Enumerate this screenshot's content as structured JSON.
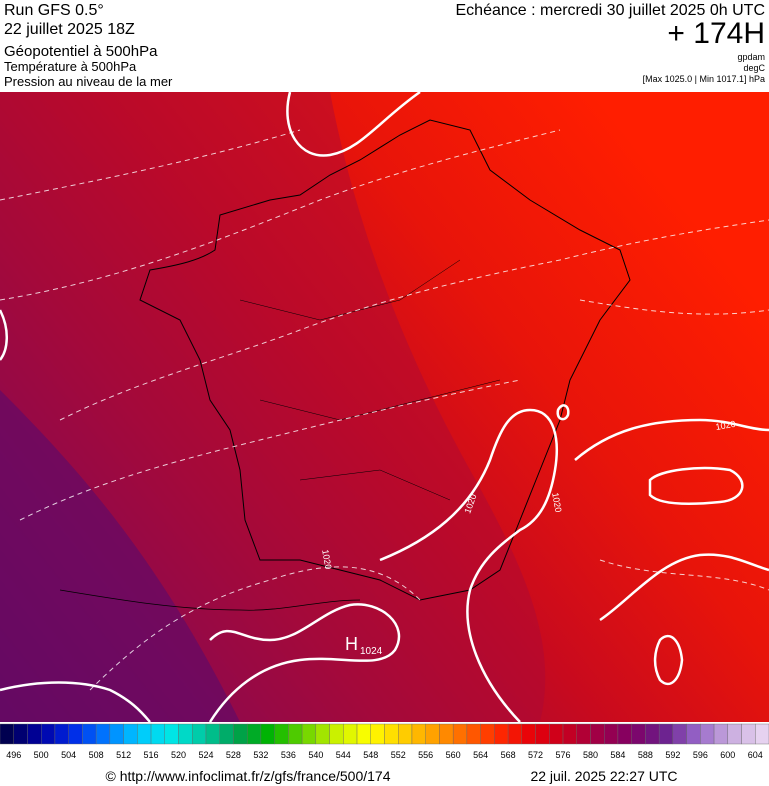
{
  "header": {
    "run": "Run GFS 0.5°",
    "run_date": "22 juillet 2025 18Z",
    "fields": [
      "Géopotentiel à 500hPa",
      "Température à 500hPa",
      "Pression au niveau de la mer"
    ],
    "valid_time": "Echéance : mercredi 30 juillet 2025 0h UTC",
    "lead": "+ 174H",
    "units": [
      "gpdam",
      "degC",
      "[Max 1025.0 | Min 1017.1] hPa"
    ]
  },
  "map_labels": {
    "isobars": [
      "1020",
      "1020",
      "1020",
      "1020"
    ],
    "high": "H",
    "high_value": "1024"
  },
  "colorbar": {
    "labels": [
      496,
      500,
      504,
      508,
      512,
      516,
      520,
      524,
      528,
      532,
      536,
      540,
      544,
      548,
      552,
      556,
      560,
      564,
      568,
      572,
      576,
      580,
      584,
      588,
      592,
      596,
      600,
      604
    ]
  },
  "footer": {
    "url": "© http://www.infoclimat.fr/z/gfs/france/500/174",
    "generated": "22 juil. 2025 22:27 UTC"
  }
}
